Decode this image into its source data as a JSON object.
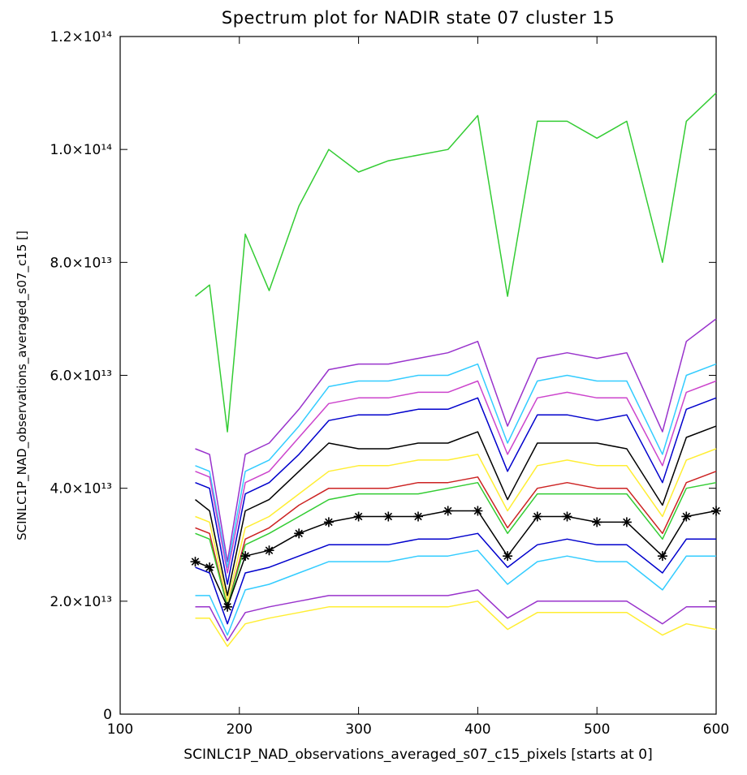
{
  "chart_data": {
    "type": "line",
    "title": "Spectrum plot for NADIR state 07 cluster 15",
    "xlabel": "SCINLC1P_NAD_observations_averaged_s07_c15_pixels [starts at 0]",
    "ylabel": "SCINLC1P_NAD_observations_averaged_s07_c15 []",
    "xlim": [
      100,
      600
    ],
    "ylim": [
      0,
      120000000000000.0
    ],
    "x_ticks": [
      100,
      200,
      300,
      400,
      500,
      600
    ],
    "x_tick_labels": [
      "100",
      "200",
      "300",
      "400",
      "500",
      "600"
    ],
    "y_ticks": [
      0,
      20000000000000.0,
      40000000000000.0,
      60000000000000.0,
      80000000000000.0,
      100000000000000.0,
      120000000000000.0
    ],
    "y_tick_labels": [
      "0",
      "2.0×10¹³",
      "4.0×10¹³",
      "6.0×10¹³",
      "8.0×10¹³",
      "1.0×10¹⁴",
      "1.2×10¹⁴"
    ],
    "grid": false,
    "x": [
      163,
      175,
      190,
      205,
      225,
      250,
      275,
      300,
      325,
      350,
      375,
      400,
      425,
      450,
      475,
      500,
      525,
      555,
      575,
      600
    ],
    "series": [
      {
        "color": "#33cc33",
        "values": [
          74000000000000.0,
          76000000000000.0,
          50000000000000.0,
          85000000000000.0,
          75000000000000.0,
          90000000000000.0,
          100000000000000.0,
          96000000000000.0,
          98000000000000.0,
          99000000000000.0,
          100000000000000.0,
          106000000000000.0,
          74000000000000.0,
          105000000000000.0,
          105000000000000.0,
          102000000000000.0,
          105000000000000.0,
          80000000000000.0,
          105000000000000.0,
          110000000000000.0
        ]
      },
      {
        "color": "#9933cc",
        "values": [
          47000000000000.0,
          46000000000000.0,
          27000000000000.0,
          46000000000000.0,
          48000000000000.0,
          54000000000000.0,
          61000000000000.0,
          62000000000000.0,
          62000000000000.0,
          63000000000000.0,
          64000000000000.0,
          66000000000000.0,
          51000000000000.0,
          63000000000000.0,
          64000000000000.0,
          63000000000000.0,
          64000000000000.0,
          50000000000000.0,
          66000000000000.0,
          70000000000000.0
        ]
      },
      {
        "color": "#33ccff",
        "values": [
          44000000000000.0,
          43000000000000.0,
          26000000000000.0,
          43000000000000.0,
          45000000000000.0,
          51000000000000.0,
          58000000000000.0,
          59000000000000.0,
          59000000000000.0,
          60000000000000.0,
          60000000000000.0,
          62000000000000.0,
          48000000000000.0,
          59000000000000.0,
          60000000000000.0,
          59000000000000.0,
          59000000000000.0,
          46000000000000.0,
          60000000000000.0,
          62000000000000.0
        ]
      },
      {
        "color": "#cc44cc",
        "values": [
          43000000000000.0,
          42000000000000.0,
          25000000000000.0,
          41000000000000.0,
          43000000000000.0,
          49000000000000.0,
          55000000000000.0,
          56000000000000.0,
          56000000000000.0,
          57000000000000.0,
          57000000000000.0,
          59000000000000.0,
          46000000000000.0,
          56000000000000.0,
          57000000000000.0,
          56000000000000.0,
          56000000000000.0,
          44000000000000.0,
          57000000000000.0,
          59000000000000.0
        ]
      },
      {
        "color": "#0000cc",
        "values": [
          41000000000000.0,
          40000000000000.0,
          23000000000000.0,
          39000000000000.0,
          41000000000000.0,
          46000000000000.0,
          52000000000000.0,
          53000000000000.0,
          53000000000000.0,
          54000000000000.0,
          54000000000000.0,
          56000000000000.0,
          43000000000000.0,
          53000000000000.0,
          53000000000000.0,
          52000000000000.0,
          53000000000000.0,
          41000000000000.0,
          54000000000000.0,
          56000000000000.0
        ]
      },
      {
        "color": "#000000",
        "values": [
          38000000000000.0,
          36000000000000.0,
          21000000000000.0,
          36000000000000.0,
          38000000000000.0,
          43000000000000.0,
          48000000000000.0,
          47000000000000.0,
          47000000000000.0,
          48000000000000.0,
          48000000000000.0,
          50000000000000.0,
          38000000000000.0,
          48000000000000.0,
          48000000000000.0,
          48000000000000.0,
          47000000000000.0,
          37000000000000.0,
          49000000000000.0,
          51000000000000.0
        ]
      },
      {
        "color": "#ffee33",
        "values": [
          35000000000000.0,
          34000000000000.0,
          20000000000000.0,
          33000000000000.0,
          35000000000000.0,
          39000000000000.0,
          43000000000000.0,
          44000000000000.0,
          44000000000000.0,
          45000000000000.0,
          45000000000000.0,
          46000000000000.0,
          36000000000000.0,
          44000000000000.0,
          45000000000000.0,
          44000000000000.0,
          44000000000000.0,
          35000000000000.0,
          45000000000000.0,
          47000000000000.0
        ]
      },
      {
        "color": "#cc2222",
        "values": [
          33000000000000.0,
          32000000000000.0,
          19000000000000.0,
          31000000000000.0,
          33000000000000.0,
          37000000000000.0,
          40000000000000.0,
          40000000000000.0,
          40000000000000.0,
          41000000000000.0,
          41000000000000.0,
          42000000000000.0,
          33000000000000.0,
          40000000000000.0,
          41000000000000.0,
          40000000000000.0,
          40000000000000.0,
          32000000000000.0,
          41000000000000.0,
          43000000000000.0
        ]
      },
      {
        "color": "#33cc33",
        "values": [
          32000000000000.0,
          31000000000000.0,
          19000000000000.0,
          30000000000000.0,
          32000000000000.0,
          35000000000000.0,
          38000000000000.0,
          39000000000000.0,
          39000000000000.0,
          39000000000000.0,
          40000000000000.0,
          41000000000000.0,
          32000000000000.0,
          39000000000000.0,
          39000000000000.0,
          39000000000000.0,
          39000000000000.0,
          31000000000000.0,
          40000000000000.0,
          41000000000000.0
        ]
      },
      {
        "color": "#0000cc",
        "values": [
          26000000000000.0,
          25000000000000.0,
          16000000000000.0,
          25000000000000.0,
          26000000000000.0,
          28000000000000.0,
          30000000000000.0,
          30000000000000.0,
          30000000000000.0,
          31000000000000.0,
          31000000000000.0,
          32000000000000.0,
          26000000000000.0,
          30000000000000.0,
          31000000000000.0,
          30000000000000.0,
          30000000000000.0,
          25000000000000.0,
          31000000000000.0,
          31000000000000.0
        ]
      },
      {
        "color": "#33ccff",
        "values": [
          21000000000000.0,
          21000000000000.0,
          14000000000000.0,
          22000000000000.0,
          23000000000000.0,
          25000000000000.0,
          27000000000000.0,
          27000000000000.0,
          27000000000000.0,
          28000000000000.0,
          28000000000000.0,
          29000000000000.0,
          23000000000000.0,
          27000000000000.0,
          28000000000000.0,
          27000000000000.0,
          27000000000000.0,
          22000000000000.0,
          28000000000000.0,
          28000000000000.0
        ]
      },
      {
        "color": "#9933cc",
        "values": [
          19000000000000.0,
          19000000000000.0,
          13000000000000.0,
          18000000000000.0,
          19000000000000.0,
          20000000000000.0,
          21000000000000.0,
          21000000000000.0,
          21000000000000.0,
          21000000000000.0,
          21000000000000.0,
          22000000000000.0,
          17000000000000.0,
          20000000000000.0,
          20000000000000.0,
          20000000000000.0,
          20000000000000.0,
          16000000000000.0,
          19000000000000.0,
          19000000000000.0
        ]
      },
      {
        "color": "#ffee33",
        "values": [
          17000000000000.0,
          17000000000000.0,
          12000000000000.0,
          16000000000000.0,
          17000000000000.0,
          18000000000000.0,
          19000000000000.0,
          19000000000000.0,
          19000000000000.0,
          19000000000000.0,
          19000000000000.0,
          20000000000000.0,
          15000000000000.0,
          18000000000000.0,
          18000000000000.0,
          18000000000000.0,
          18000000000000.0,
          14000000000000.0,
          16000000000000.0,
          15000000000000.0
        ]
      },
      {
        "color": "#000000",
        "marker": "asterisk",
        "values": [
          27000000000000.0,
          26000000000000.0,
          19000000000000.0,
          28000000000000.0,
          29000000000000.0,
          32000000000000.0,
          34000000000000.0,
          35000000000000.0,
          35000000000000.0,
          35000000000000.0,
          36000000000000.0,
          36000000000000.0,
          28000000000000.0,
          35000000000000.0,
          35000000000000.0,
          34000000000000.0,
          34000000000000.0,
          28000000000000.0,
          35000000000000.0,
          36000000000000.0
        ]
      }
    ]
  }
}
